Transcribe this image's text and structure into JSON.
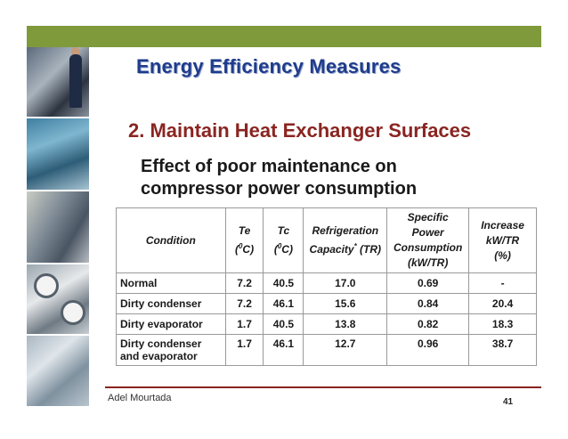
{
  "slide": {
    "title": "Energy Efficiency Measures",
    "subtitle": "2. Maintain Heat Exchanger Surfaces",
    "heading_line1": "Effect of poor maintenance on",
    "heading_line2": "compressor power consumption"
  },
  "table": {
    "headers": {
      "condition": "Condition",
      "te": "Te",
      "te_unit": "C)",
      "tc": "Tc",
      "tc_unit": "C)",
      "refrig_line1": "Refrigeration",
      "refrig_line2": "Capacity",
      "refrig_unit": "(TR)",
      "spc_line1": "Specific",
      "spc_line2": "Power",
      "spc_line3": "Consumption",
      "spc_line4": "(kW/TR)",
      "inc_line1": "Increase",
      "inc_line2": "kW/TR",
      "inc_line3": "(%)"
    },
    "rows": [
      {
        "condition": "Normal",
        "te": "7.2",
        "tc": "40.5",
        "capacity": "17.0",
        "spc": "0.69",
        "increase": "-"
      },
      {
        "condition": "Dirty condenser",
        "te": "7.2",
        "tc": "46.1",
        "capacity": "15.6",
        "spc": "0.84",
        "increase": "20.4"
      },
      {
        "condition": "Dirty evaporator",
        "te": "1.7",
        "tc": "40.5",
        "capacity": "13.8",
        "spc": "0.82",
        "increase": "18.3"
      },
      {
        "condition_line1": "Dirty condenser",
        "condition_line2": "and evaporator",
        "te": "1.7",
        "tc": "46.1",
        "capacity": "12.7",
        "spc": "0.96",
        "increase": "38.7"
      }
    ]
  },
  "footer": {
    "author": "Adel Mourtada",
    "page": "41"
  },
  "colors": {
    "topbar": "#7f9a3b",
    "title": "#1f3c8c",
    "subtitle": "#8a2521"
  }
}
